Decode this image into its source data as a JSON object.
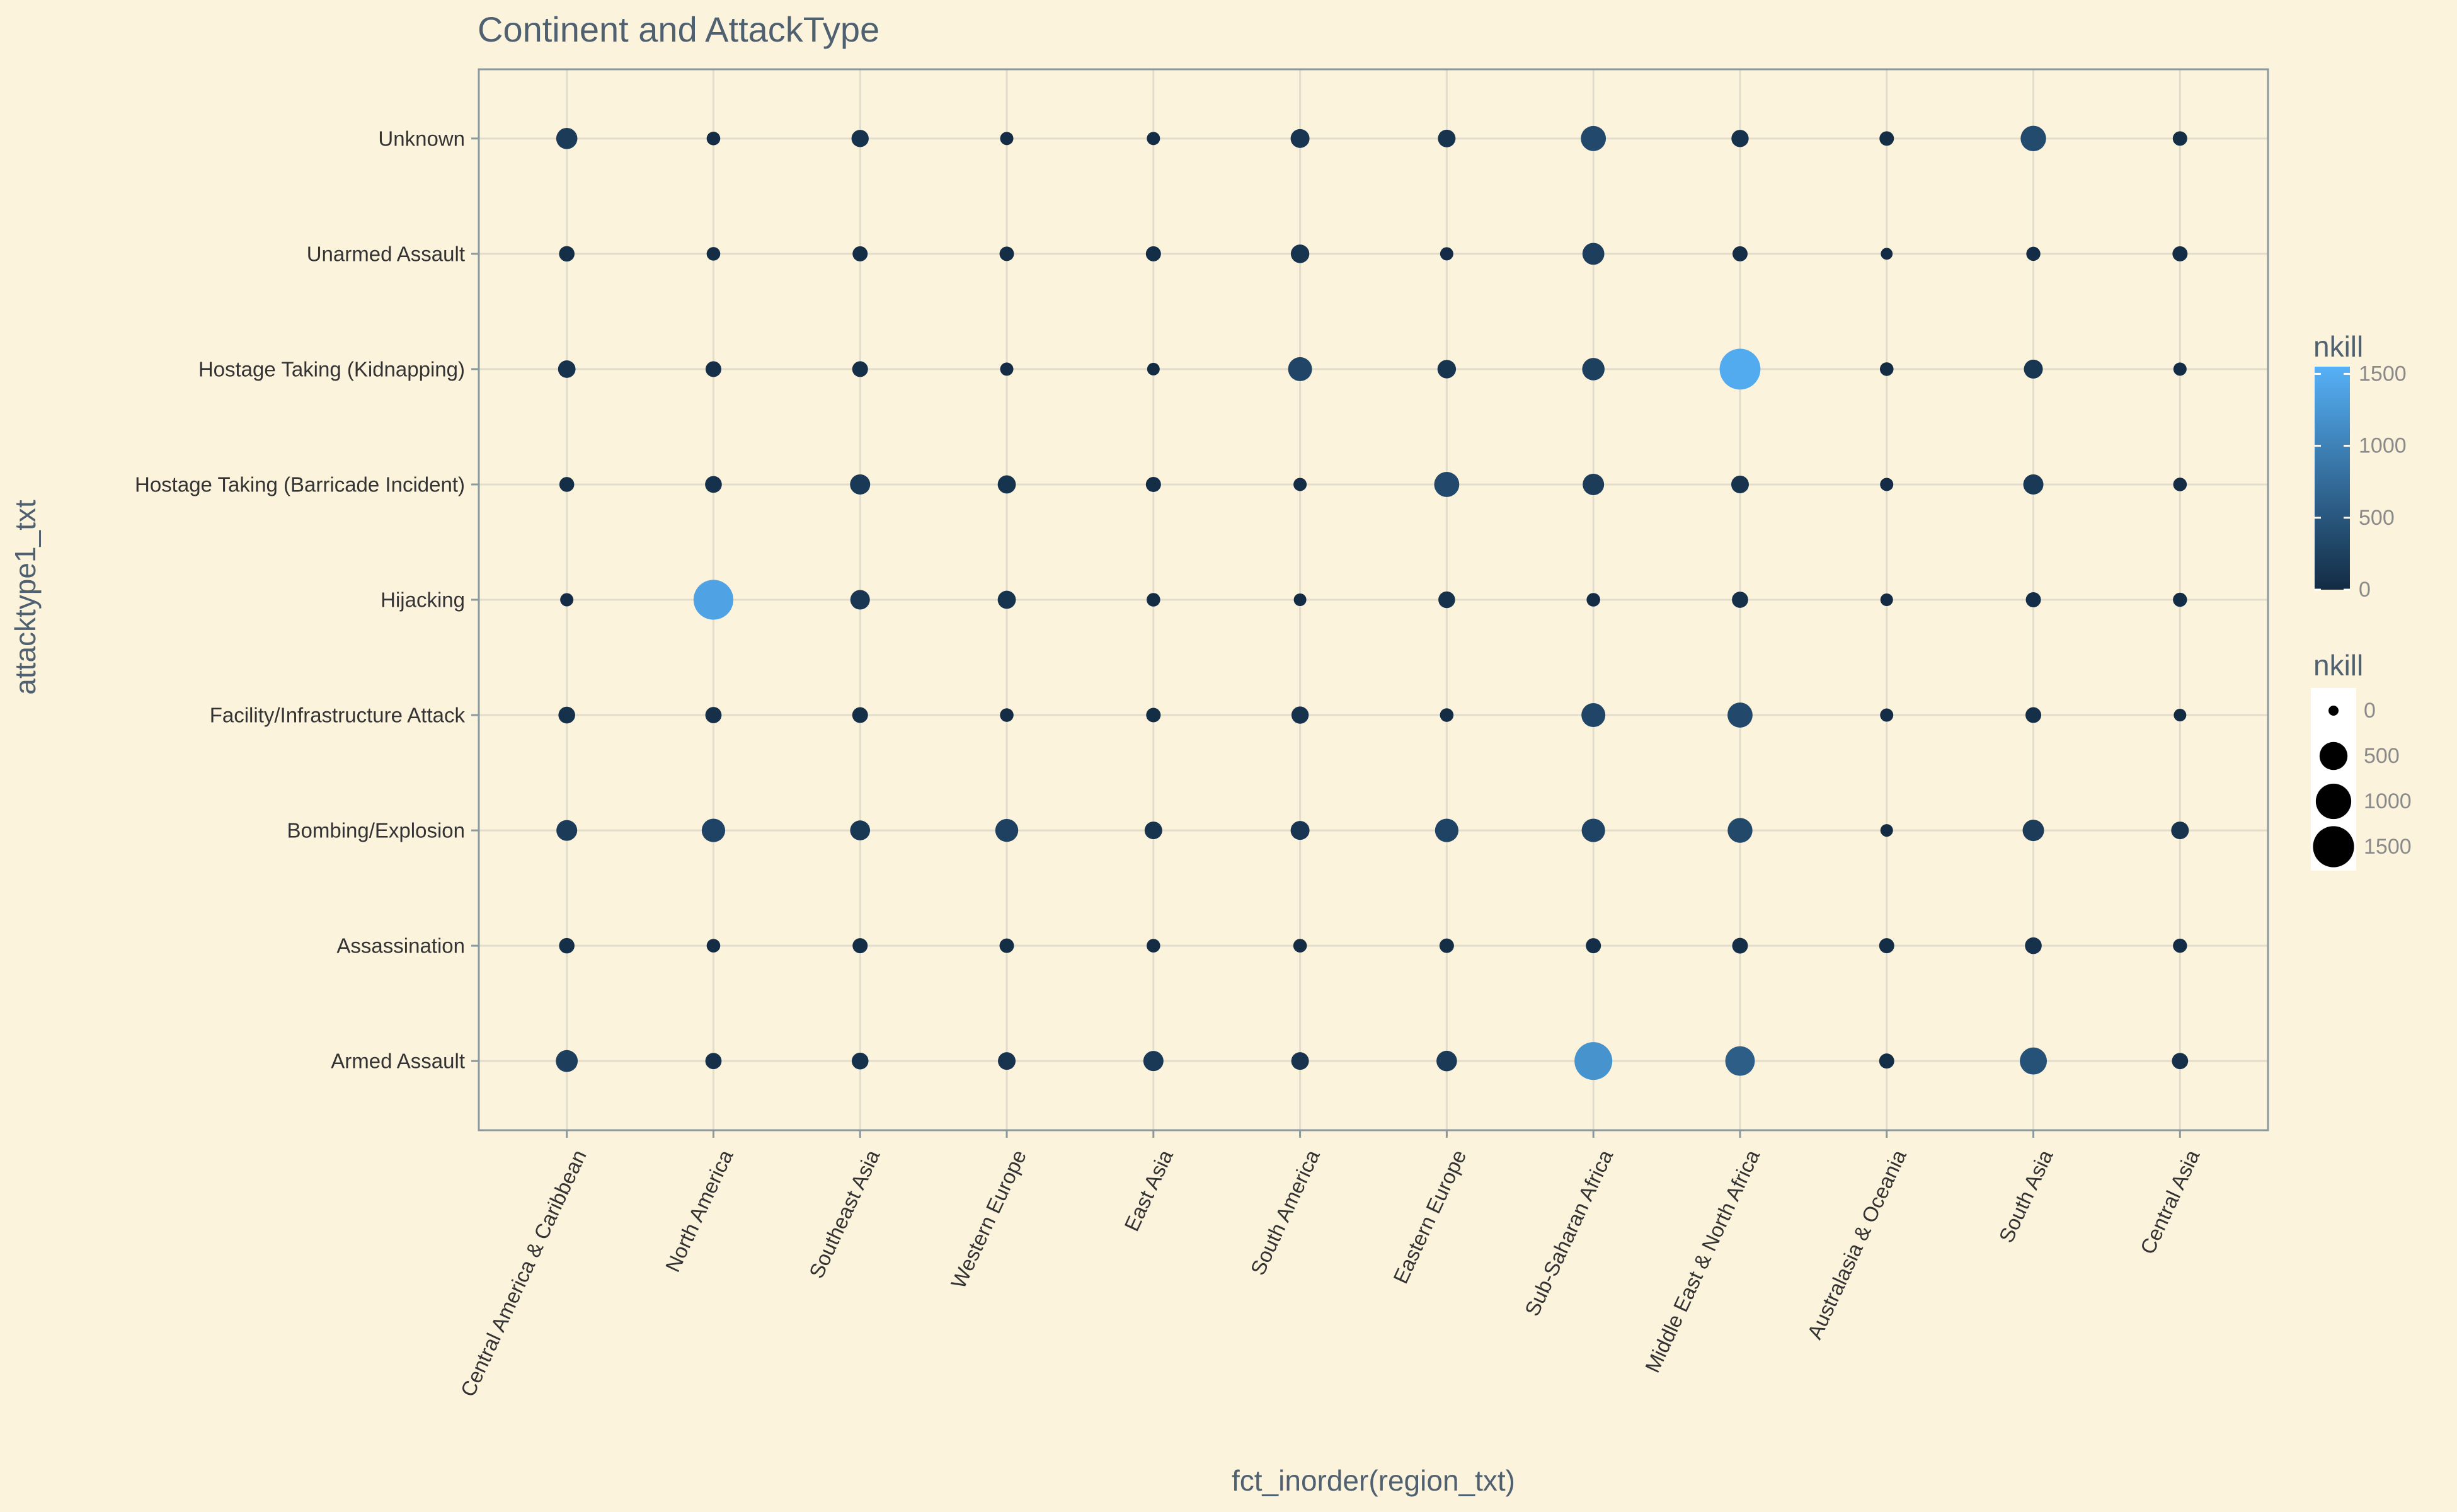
{
  "chart_data": {
    "type": "scatter",
    "title": "Continent and AttackType",
    "xlabel": "fct_inorder(region_txt)",
    "ylabel": "attacktype1_txt",
    "x_categories": [
      "Central America & Caribbean",
      "North America",
      "Southeast Asia",
      "Western Europe",
      "East Asia",
      "South America",
      "Eastern Europe",
      "Sub-Saharan Africa",
      "Middle East & North Africa",
      "Australasia & Oceania",
      "South Asia",
      "Central Asia"
    ],
    "y_categories": [
      "Armed Assault",
      "Assassination",
      "Bombing/Explosion",
      "Facility/Infrastructure Attack",
      "Hijacking",
      "Hostage Taking (Barricade Incident)",
      "Hostage Taking (Kidnapping)",
      "Unarmed Assault",
      "Unknown"
    ],
    "values": [
      [
        220,
        45,
        180,
        70,
        15,
        35,
        85,
        45,
        190
      ],
      [
        60,
        20,
        280,
        60,
        1380,
        70,
        50,
        20,
        20
      ],
      [
        70,
        40,
        150,
        50,
        140,
        160,
        50,
        40,
        80
      ],
      [
        90,
        30,
        260,
        20,
        100,
        100,
        15,
        30,
        15
      ],
      [
        160,
        20,
        90,
        30,
        20,
        40,
        10,
        40,
        15
      ],
      [
        90,
        20,
        120,
        80,
        10,
        15,
        300,
        110,
        120
      ],
      [
        170,
        30,
        280,
        20,
        70,
        350,
        110,
        15,
        90
      ],
      [
        1200,
        40,
        280,
        300,
        20,
        200,
        240,
        220,
        350
      ],
      [
        590,
        50,
        340,
        350,
        60,
        90,
        1480,
        40,
        80
      ],
      [
        40,
        40,
        10,
        15,
        10,
        15,
        20,
        5,
        30
      ],
      [
        450,
        70,
        200,
        50,
        40,
        160,
        120,
        25,
        370
      ],
      [
        60,
        25,
        90,
        10,
        25,
        20,
        15,
        40,
        30
      ]
    ],
    "size_legend": {
      "title": "nkill",
      "breaks": [
        "0",
        "500",
        "1000",
        "1500"
      ]
    },
    "color_legend": {
      "title": "nkill",
      "breaks": [
        "0",
        "500",
        "1000",
        "1500"
      ],
      "low": "#132b43",
      "high": "#56b1f7"
    },
    "value_range": [
      0,
      1550
    ]
  }
}
